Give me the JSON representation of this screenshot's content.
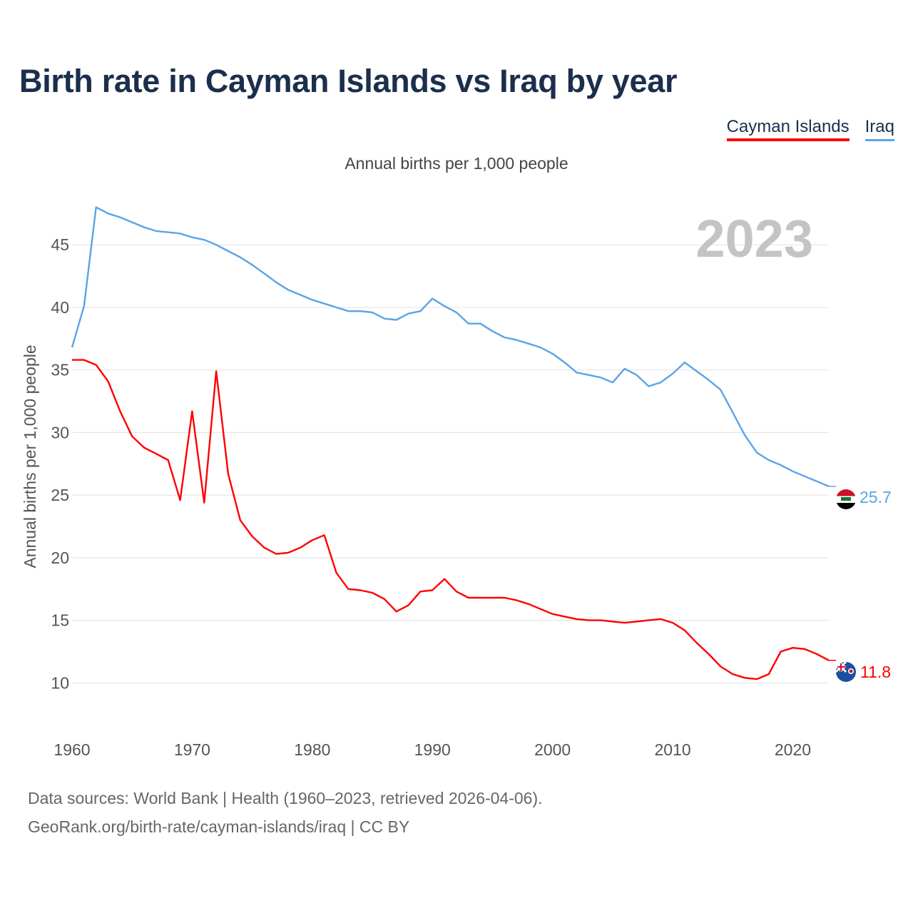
{
  "header": {
    "title": "Birth rate in Cayman Islands vs Iraq by year",
    "subtitle": "Annual births per 1,000 people"
  },
  "legend": {
    "cayman": "Cayman Islands",
    "iraq": "Iraq"
  },
  "footer": {
    "line1": "Data sources: World Bank | Health (1960–2023, retrieved 2026-04-06).",
    "line2": "GeoRank.org/birth-rate/cayman-islands/iraq | CC BY"
  },
  "colors": {
    "cayman": "#ff0000",
    "iraq": "#5aa4e6",
    "title": "#1b2f4c",
    "year_watermark": "#c4c4c4"
  },
  "chart_data": {
    "type": "line",
    "title": "Birth rate in Cayman Islands vs Iraq by year",
    "ylabel": "Annual births per 1,000 people",
    "xlabel": "",
    "year_label": "2023",
    "xlim": [
      1960,
      2023
    ],
    "ylim": [
      7,
      49
    ],
    "x_ticks": [
      1960,
      1970,
      1980,
      1990,
      2000,
      2010,
      2020
    ],
    "y_ticks": [
      10,
      15,
      20,
      25,
      30,
      35,
      40,
      45
    ],
    "grid": true,
    "legend_position": "top-right",
    "x": [
      1960,
      1961,
      1962,
      1963,
      1964,
      1965,
      1966,
      1967,
      1968,
      1969,
      1970,
      1971,
      1972,
      1973,
      1974,
      1975,
      1976,
      1977,
      1978,
      1979,
      1980,
      1981,
      1982,
      1983,
      1984,
      1985,
      1986,
      1987,
      1988,
      1989,
      1990,
      1991,
      1992,
      1993,
      1994,
      1995,
      1996,
      1997,
      1998,
      1999,
      2000,
      2001,
      2002,
      2003,
      2004,
      2005,
      2006,
      2007,
      2008,
      2009,
      2010,
      2011,
      2012,
      2013,
      2014,
      2015,
      2016,
      2017,
      2018,
      2019,
      2020,
      2021,
      2022,
      2023
    ],
    "series": [
      {
        "name": "Iraq",
        "end_label": "25.7",
        "values": [
          36.8,
          40.1,
          48.0,
          47.5,
          47.2,
          46.8,
          46.4,
          46.1,
          46.0,
          45.9,
          45.6,
          45.4,
          45.0,
          44.5,
          44.0,
          43.4,
          42.7,
          42.0,
          41.4,
          41.0,
          40.6,
          40.3,
          40.0,
          39.7,
          39.7,
          39.6,
          39.1,
          39.0,
          39.5,
          39.7,
          40.7,
          40.1,
          39.6,
          38.7,
          38.7,
          38.1,
          37.6,
          37.4,
          37.1,
          36.8,
          36.3,
          35.6,
          34.8,
          34.6,
          34.4,
          34.0,
          35.1,
          34.6,
          33.7,
          34.0,
          34.7,
          35.6,
          34.9,
          34.2,
          33.4,
          31.6,
          29.8,
          28.4,
          27.8,
          27.4,
          26.9,
          26.5,
          26.1,
          25.7
        ]
      },
      {
        "name": "Cayman Islands",
        "end_label": "11.8",
        "values": [
          35.8,
          35.8,
          35.4,
          34.1,
          31.7,
          29.7,
          28.8,
          28.3,
          27.8,
          24.6,
          31.7,
          24.4,
          34.9,
          26.7,
          23.0,
          21.7,
          20.8,
          20.3,
          20.4,
          20.8,
          21.4,
          21.8,
          18.8,
          17.5,
          17.4,
          17.2,
          16.7,
          15.7,
          16.2,
          17.3,
          17.4,
          18.3,
          17.3,
          16.8,
          16.8,
          16.8,
          16.8,
          16.6,
          16.3,
          15.9,
          15.5,
          15.3,
          15.1,
          15.0,
          15.0,
          14.9,
          14.8,
          14.9,
          15.0,
          15.1,
          14.8,
          14.2,
          13.2,
          12.3,
          11.3,
          10.7,
          10.4,
          10.3,
          10.7,
          12.5,
          12.8,
          12.7,
          12.3,
          11.8
        ]
      }
    ]
  }
}
